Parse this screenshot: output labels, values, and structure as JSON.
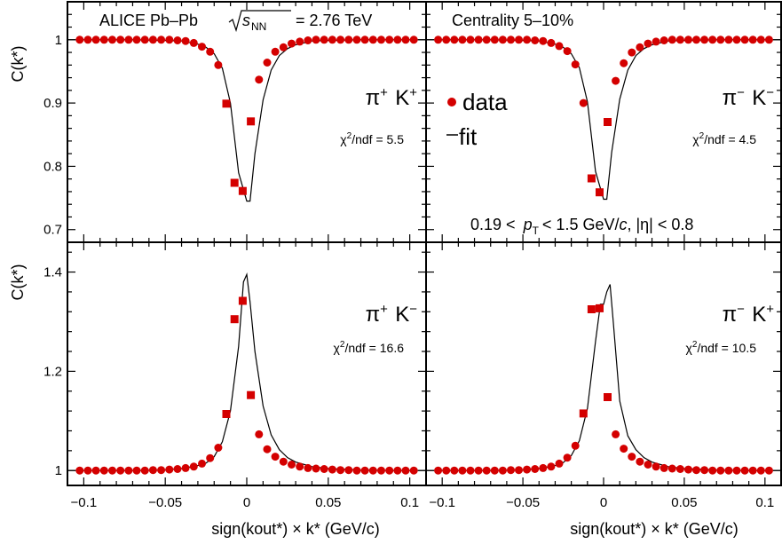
{
  "header": {
    "experiment": "ALICE Pb–Pb",
    "energy_symbol": "s",
    "energy_subscript": "NN",
    "energy_value": "= 2.76 TeV",
    "centrality": "Centrality 5–10%",
    "kinematic_cut_prefix": "0.19 <",
    "kinematic_cut_var": "p",
    "kinematic_cut_sub": "T",
    "kinematic_cut_mid": "< 1.5 GeV/",
    "kinematic_cut_c": "c",
    "kinematic_cut_tail": ", |η| < 0.8"
  },
  "legend": {
    "data_label": "data",
    "fit_label": "fit"
  },
  "axes": {
    "y_title_top": "C(k*)",
    "y_title_bottom": "C(k*)",
    "x_title_left": "sign(kout*) × k* (GeV/c)",
    "x_title_right": "sign(kout*) × k* (GeV/c)",
    "x_ticks": [
      "−0.1",
      "−0.05",
      "0",
      "0.05",
      "0.1"
    ],
    "y_ticks_top": [
      "0.7",
      "0.8",
      "0.9",
      "1"
    ],
    "y_ticks_bottom": [
      "1",
      "1.2",
      "1.4"
    ]
  },
  "colors": {
    "data": "#d40000",
    "fit": "#000000"
  },
  "chart_data": [
    {
      "type": "scatter",
      "panel": "top-left",
      "pair_label": "π+ K+",
      "chi2_label": "χ2/ndf = 5.5",
      "xlim": [
        -0.11,
        0.11
      ],
      "ylim": [
        0.68,
        1.06
      ],
      "x": [
        -0.1025,
        -0.0975,
        -0.0925,
        -0.0875,
        -0.0825,
        -0.0775,
        -0.0725,
        -0.0675,
        -0.0625,
        -0.0575,
        -0.0525,
        -0.0475,
        -0.0425,
        -0.0375,
        -0.0325,
        -0.0275,
        -0.0225,
        -0.0175,
        -0.0125,
        -0.0075,
        -0.0025,
        0.0025,
        0.0075,
        0.0125,
        0.0175,
        0.0225,
        0.0275,
        0.0325,
        0.0375,
        0.0425,
        0.0475,
        0.0525,
        0.0575,
        0.0625,
        0.0675,
        0.0725,
        0.0775,
        0.0825,
        0.0875,
        0.0925,
        0.0975,
        0.1025
      ],
      "y": [
        1.0,
        1.0,
        1.0,
        1.0,
        1.0,
        1.0,
        1.0,
        1.0,
        1.0,
        1.0,
        1.0,
        1.0,
        0.999,
        0.998,
        0.995,
        0.989,
        0.981,
        0.96,
        0.899,
        0.774,
        0.761,
        0.871,
        0.937,
        0.964,
        0.981,
        0.988,
        0.994,
        0.997,
        0.999,
        1.0,
        1.0,
        1.0,
        1.0,
        1.0,
        1.0,
        1.0,
        1.0,
        1.0,
        1.0,
        1.0,
        1.0,
        1.0
      ],
      "fit_x": [
        -0.11,
        -0.09,
        -0.07,
        -0.05,
        -0.04,
        -0.03,
        -0.025,
        -0.02,
        -0.015,
        -0.01,
        -0.005,
        0.0,
        0.002,
        0.005,
        0.01,
        0.015,
        0.02,
        0.025,
        0.03,
        0.04,
        0.05,
        0.07,
        0.09,
        0.11
      ],
      "fit_y": [
        1.0,
        1.0,
        1.0,
        0.999,
        0.998,
        0.993,
        0.988,
        0.978,
        0.955,
        0.9,
        0.79,
        0.745,
        0.745,
        0.82,
        0.905,
        0.952,
        0.975,
        0.986,
        0.992,
        0.998,
        0.999,
        1.0,
        1.0,
        1.0
      ]
    },
    {
      "type": "scatter",
      "panel": "top-right",
      "pair_label": "π− K−",
      "chi2_label": "χ2/ndf = 4.5",
      "xlim": [
        -0.11,
        0.11
      ],
      "ylim": [
        0.68,
        1.06
      ],
      "x": [
        -0.1025,
        -0.0975,
        -0.0925,
        -0.0875,
        -0.0825,
        -0.0775,
        -0.0725,
        -0.0675,
        -0.0625,
        -0.0575,
        -0.0525,
        -0.0475,
        -0.0425,
        -0.0375,
        -0.0325,
        -0.0275,
        -0.0225,
        -0.0175,
        -0.0125,
        -0.0075,
        -0.0025,
        0.0025,
        0.0075,
        0.0125,
        0.0175,
        0.0225,
        0.0275,
        0.0325,
        0.0375,
        0.0425,
        0.0475,
        0.0525,
        0.0575,
        0.0625,
        0.0675,
        0.0725,
        0.0775,
        0.0825,
        0.0875,
        0.0925,
        0.0975,
        0.1025
      ],
      "y": [
        1.0,
        1.0,
        1.0,
        1.0,
        1.0,
        1.0,
        1.0,
        1.0,
        1.0,
        1.0,
        1.0,
        1.0,
        0.999,
        0.998,
        0.995,
        0.99,
        0.982,
        0.961,
        0.9,
        0.781,
        0.759,
        0.87,
        0.935,
        0.963,
        0.98,
        0.988,
        0.994,
        0.997,
        0.999,
        1.0,
        1.0,
        1.0,
        1.0,
        1.0,
        1.0,
        1.0,
        1.0,
        1.0,
        1.0,
        1.0,
        1.0,
        1.0
      ],
      "fit_x": [
        -0.11,
        -0.09,
        -0.07,
        -0.05,
        -0.04,
        -0.03,
        -0.025,
        -0.02,
        -0.015,
        -0.01,
        -0.005,
        0.0,
        0.002,
        0.005,
        0.01,
        0.015,
        0.02,
        0.025,
        0.03,
        0.04,
        0.05,
        0.07,
        0.09,
        0.11
      ],
      "fit_y": [
        1.0,
        1.0,
        1.0,
        0.999,
        0.998,
        0.993,
        0.988,
        0.978,
        0.956,
        0.902,
        0.792,
        0.748,
        0.748,
        0.822,
        0.906,
        0.952,
        0.975,
        0.986,
        0.992,
        0.998,
        0.999,
        1.0,
        1.0,
        1.0
      ]
    },
    {
      "type": "scatter",
      "panel": "bottom-left",
      "pair_label": "π+ K−",
      "chi2_label": "χ2/ndf = 16.6",
      "xlim": [
        -0.11,
        0.11
      ],
      "ylim": [
        0.97,
        1.46
      ],
      "x": [
        -0.1025,
        -0.0975,
        -0.0925,
        -0.0875,
        -0.0825,
        -0.0775,
        -0.0725,
        -0.0675,
        -0.0625,
        -0.0575,
        -0.0525,
        -0.0475,
        -0.0425,
        -0.0375,
        -0.0325,
        -0.0275,
        -0.0225,
        -0.0175,
        -0.0125,
        -0.0075,
        -0.0025,
        0.0025,
        0.0075,
        0.0125,
        0.0175,
        0.0225,
        0.0275,
        0.0325,
        0.0375,
        0.0425,
        0.0475,
        0.0525,
        0.0575,
        0.0625,
        0.0675,
        0.0725,
        0.0775,
        0.0825,
        0.0875,
        0.0925,
        0.0975,
        0.1025
      ],
      "y": [
        1.0,
        1.0,
        1.0,
        1.0,
        1.0,
        1.0,
        1.0,
        1.0,
        1.0,
        1.001,
        1.001,
        1.002,
        1.003,
        1.005,
        1.008,
        1.014,
        1.025,
        1.046,
        1.114,
        1.305,
        1.342,
        1.152,
        1.073,
        1.043,
        1.028,
        1.018,
        1.012,
        1.008,
        1.005,
        1.004,
        1.003,
        1.002,
        1.001,
        1.001,
        1.0,
        1.0,
        1.0,
        1.0,
        1.0,
        1.0,
        1.0,
        1.0
      ],
      "fit_x": [
        -0.11,
        -0.09,
        -0.07,
        -0.05,
        -0.04,
        -0.03,
        -0.025,
        -0.02,
        -0.015,
        -0.01,
        -0.005,
        -0.002,
        0.0,
        0.002,
        0.005,
        0.01,
        0.015,
        0.02,
        0.025,
        0.03,
        0.04,
        0.05,
        0.07,
        0.09,
        0.11
      ],
      "fit_y": [
        1.0,
        1.0,
        1.0,
        1.001,
        1.004,
        1.01,
        1.015,
        1.028,
        1.058,
        1.12,
        1.25,
        1.38,
        1.395,
        1.34,
        1.24,
        1.13,
        1.072,
        1.042,
        1.026,
        1.017,
        1.008,
        1.004,
        1.001,
        1.0,
        1.0
      ]
    },
    {
      "type": "scatter",
      "panel": "bottom-right",
      "pair_label": "π− K+",
      "chi2_label": "χ2/ndf = 10.5",
      "xlim": [
        -0.11,
        0.11
      ],
      "ylim": [
        0.97,
        1.46
      ],
      "x": [
        -0.1025,
        -0.0975,
        -0.0925,
        -0.0875,
        -0.0825,
        -0.0775,
        -0.0725,
        -0.0675,
        -0.0625,
        -0.0575,
        -0.0525,
        -0.0475,
        -0.0425,
        -0.0375,
        -0.0325,
        -0.0275,
        -0.0225,
        -0.0175,
        -0.0125,
        -0.0075,
        -0.0025,
        0.0025,
        0.0075,
        0.0125,
        0.0175,
        0.0225,
        0.0275,
        0.0325,
        0.0375,
        0.0425,
        0.0475,
        0.0525,
        0.0575,
        0.0625,
        0.0675,
        0.0725,
        0.0775,
        0.0825,
        0.0875,
        0.0925,
        0.0975,
        0.1025
      ],
      "y": [
        1.0,
        1.0,
        1.0,
        1.0,
        1.0,
        1.0,
        1.0,
        1.0,
        1.0,
        1.001,
        1.001,
        1.002,
        1.003,
        1.005,
        1.008,
        1.014,
        1.026,
        1.05,
        1.115,
        1.325,
        1.327,
        1.148,
        1.073,
        1.044,
        1.028,
        1.018,
        1.012,
        1.008,
        1.005,
        1.004,
        1.003,
        1.002,
        1.001,
        1.001,
        1.0,
        1.0,
        1.0,
        1.0,
        1.0,
        1.0,
        1.0,
        1.0
      ],
      "fit_x": [
        -0.11,
        -0.09,
        -0.07,
        -0.05,
        -0.04,
        -0.03,
        -0.025,
        -0.02,
        -0.015,
        -0.01,
        -0.005,
        -0.002,
        0.0,
        0.002,
        0.004,
        0.006,
        0.01,
        0.015,
        0.02,
        0.025,
        0.03,
        0.04,
        0.05,
        0.07,
        0.09,
        0.11
      ],
      "fit_y": [
        1.0,
        1.0,
        1.0,
        1.001,
        1.004,
        1.01,
        1.016,
        1.03,
        1.06,
        1.125,
        1.26,
        1.335,
        1.335,
        1.36,
        1.375,
        1.3,
        1.14,
        1.07,
        1.042,
        1.026,
        1.017,
        1.008,
        1.004,
        1.001,
        1.0,
        1.0
      ]
    }
  ]
}
